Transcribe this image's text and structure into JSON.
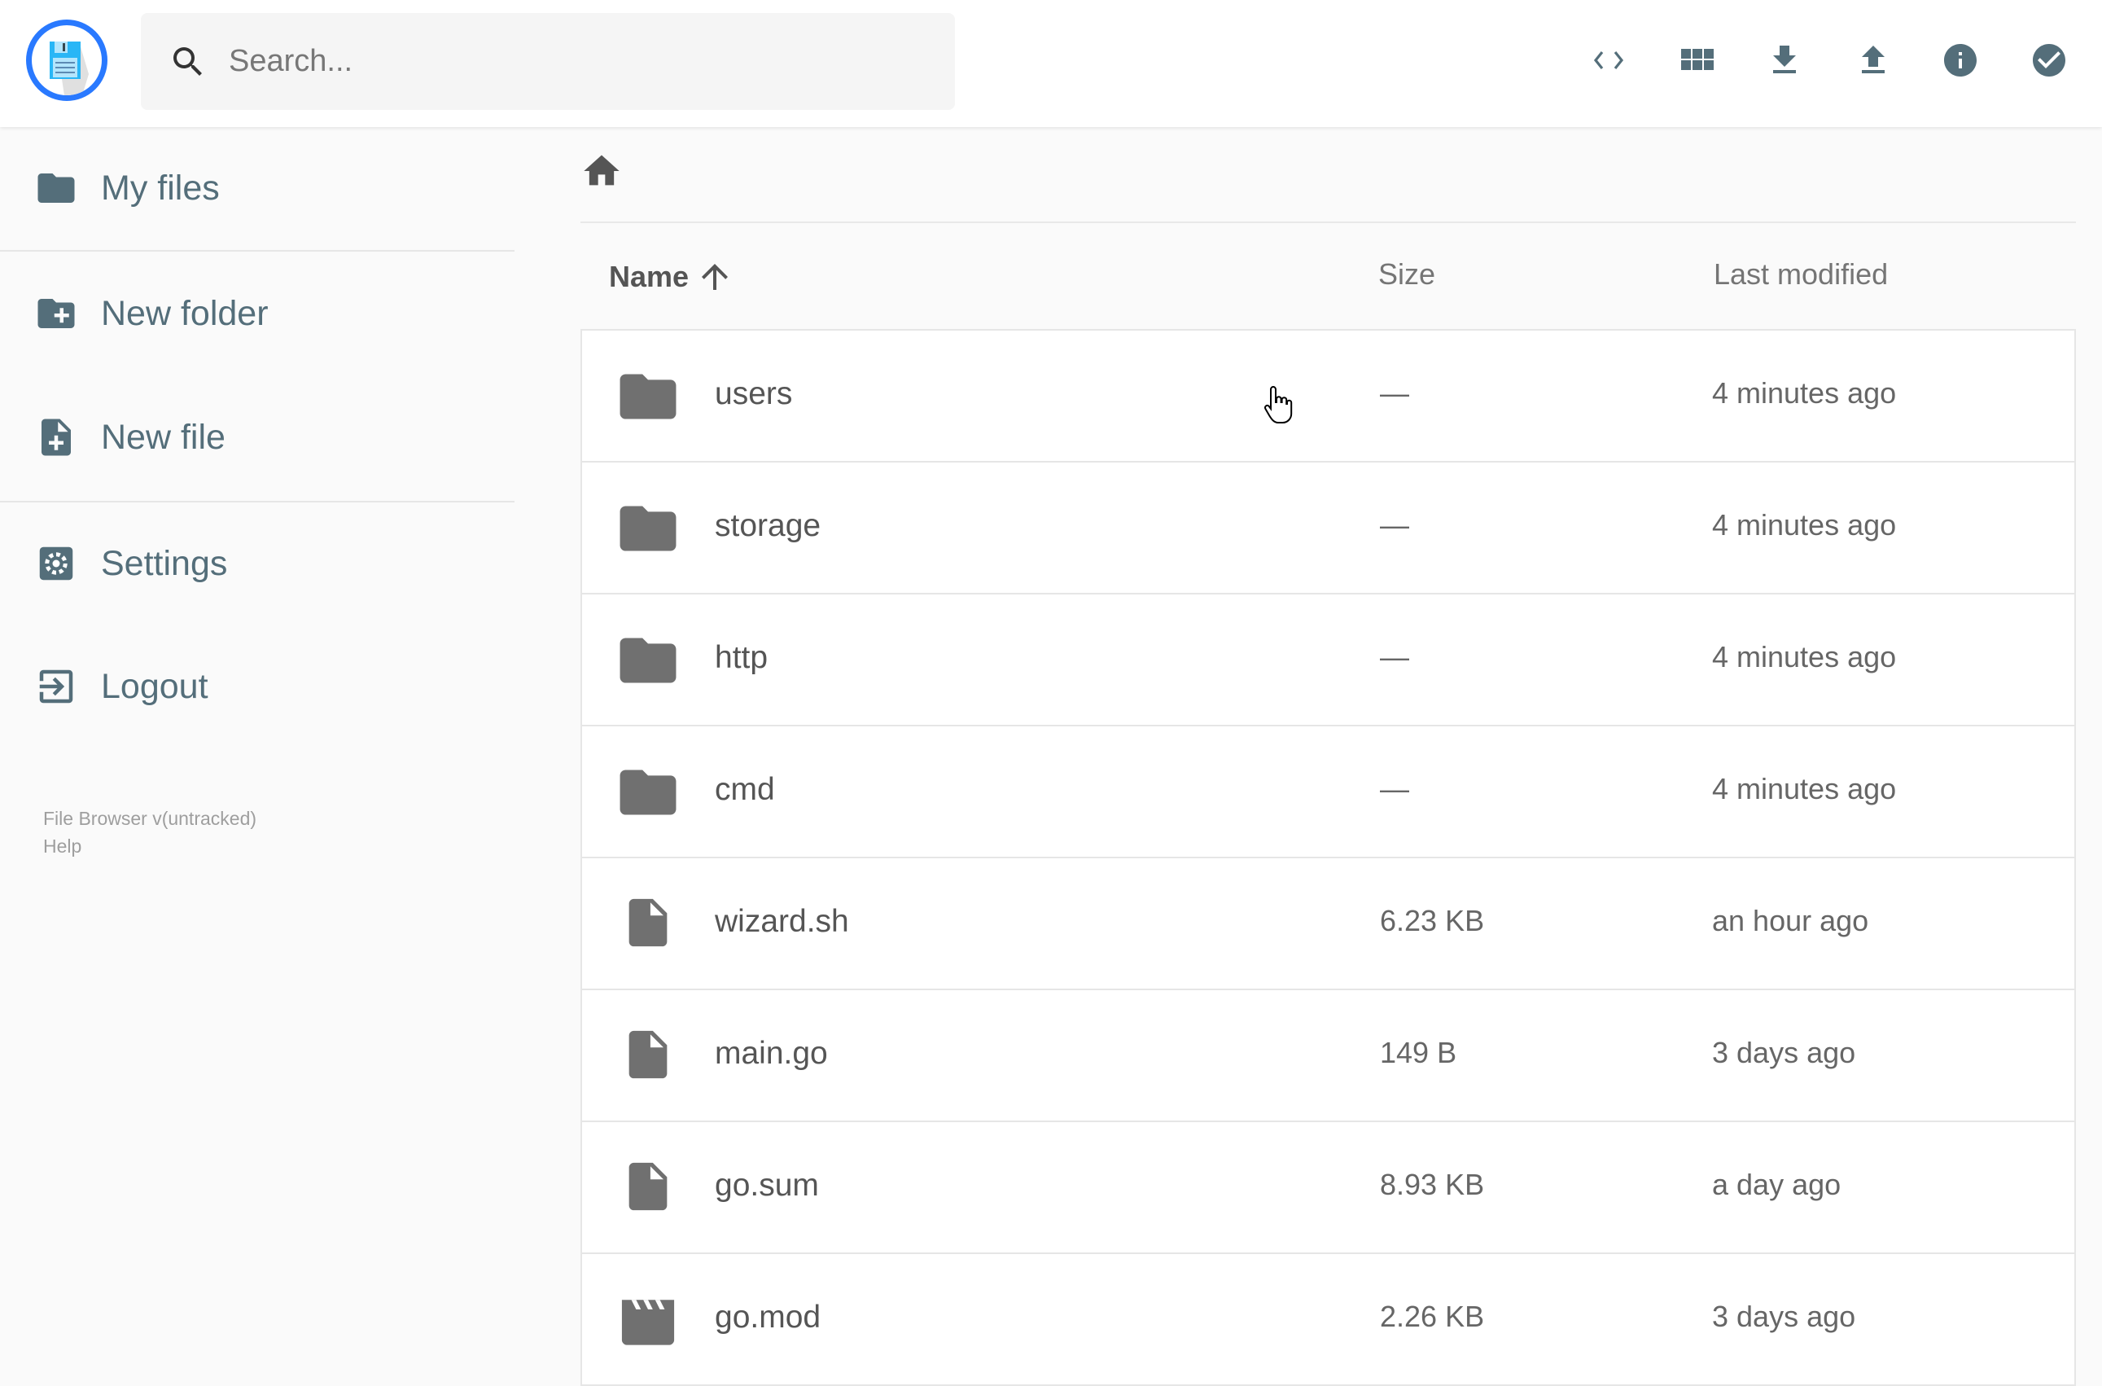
{
  "header": {
    "search_placeholder": "Search...",
    "actions": [
      "code-view-icon",
      "grid-view-icon",
      "download-icon",
      "upload-icon",
      "info-icon",
      "select-check-icon"
    ],
    "icon_color": "#546e7a",
    "logo_color": "#2979ff"
  },
  "sidebar": {
    "items": [
      {
        "label": "My files",
        "icon": "folder-icon"
      },
      {
        "label": "New folder",
        "icon": "create-new-folder-icon"
      },
      {
        "label": "New file",
        "icon": "note-add-icon"
      },
      {
        "label": "Settings",
        "icon": "settings-icon"
      },
      {
        "label": "Logout",
        "icon": "exit-icon"
      }
    ],
    "footer": {
      "version": "File Browser v(untracked)",
      "help": "Help"
    }
  },
  "listing": {
    "columns": {
      "name": "Name",
      "size": "Size",
      "modified": "Last modified"
    },
    "sort": "name-ascending",
    "rows": [
      {
        "name": "users",
        "type": "folder",
        "size": "—",
        "modified": "4 minutes ago"
      },
      {
        "name": "storage",
        "type": "folder",
        "size": "—",
        "modified": "4 minutes ago"
      },
      {
        "name": "http",
        "type": "folder",
        "size": "—",
        "modified": "4 minutes ago"
      },
      {
        "name": "cmd",
        "type": "folder",
        "size": "—",
        "modified": "4 minutes ago"
      },
      {
        "name": "wizard.sh",
        "type": "file",
        "size": "6.23 KB",
        "modified": "an hour ago"
      },
      {
        "name": "main.go",
        "type": "file",
        "size": "149 B",
        "modified": "3 days ago"
      },
      {
        "name": "go.sum",
        "type": "file",
        "size": "8.93 KB",
        "modified": "a day ago"
      },
      {
        "name": "go.mod",
        "type": "movie",
        "size": "2.26 KB",
        "modified": "3 days ago"
      }
    ]
  }
}
